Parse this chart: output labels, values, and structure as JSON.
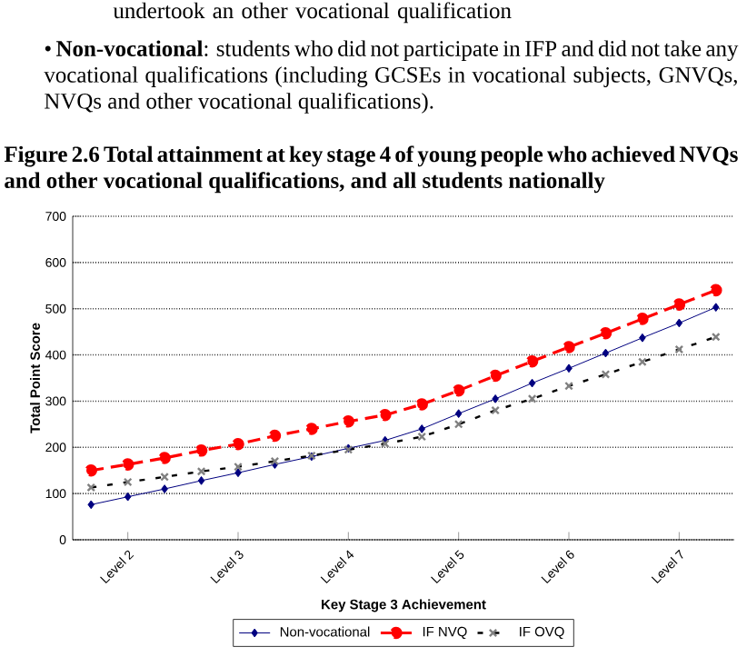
{
  "chart_data": {
    "type": "line",
    "title": "Figure 2.6 Total attainment at key stage 4 of young people who achieved NVQs and other vocational qualifications, and all students nationally",
    "annotations": [
      "undertook an other vocational qualification",
      "• **Non-vocational**:  students who did not participate in IFP and did not take any vocational qualifications (including GCSEs in vocational subjects, GNVQs, NVQs and other vocational qualifications)."
    ],
    "xlabel": "Key Stage 3 Achievement",
    "ylabel": "Total Point Score",
    "categories": [
      null,
      "Level 2",
      null,
      null,
      "Level 3",
      null,
      null,
      "Level 4",
      null,
      null,
      "Level 5",
      null,
      null,
      "Level 6",
      null,
      null,
      "Level 7",
      null
    ],
    "series": [
      {
        "name": "Non-vocational",
        "color": "#000080",
        "marker": "diamond",
        "line_style": "solid",
        "values": [
          76,
          93,
          110,
          128,
          145,
          163,
          180,
          198,
          215,
          240,
          273,
          305,
          339,
          371,
          404,
          437,
          469,
          503
        ]
      },
      {
        "name": "IF NVQ",
        "color": "#ff0000",
        "marker": "circle",
        "line_style": "dashed",
        "values": [
          150,
          163,
          177,
          193,
          207,
          225,
          240,
          256,
          270,
          293,
          323,
          355,
          386,
          417,
          447,
          478,
          509,
          540
        ]
      },
      {
        "name": "IF OVQ",
        "color": "#000000",
        "marker": "cross",
        "line_style": "dashed",
        "values": [
          113,
          125,
          136,
          148,
          158,
          170,
          182,
          195,
          208,
          223,
          250,
          280,
          305,
          333,
          358,
          385,
          412,
          439
        ]
      }
    ],
    "ylim": [
      0,
      700
    ],
    "yticks": [
      0,
      100,
      200,
      300,
      400,
      500,
      600,
      700
    ],
    "grid": "y",
    "legend": "bottom"
  }
}
